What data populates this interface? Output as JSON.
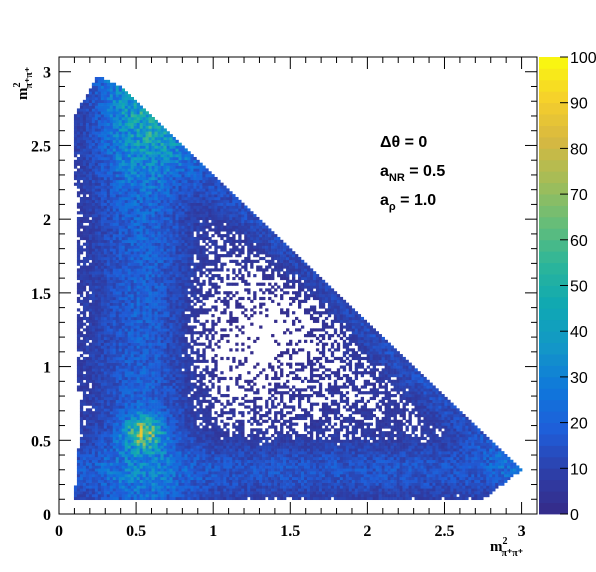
{
  "chart_data": {
    "type": "heatmap",
    "title": "",
    "xlabel": "m²π⁺π⁺",
    "ylabel": "m²π⁺π⁺",
    "xlim": [
      0,
      3.1
    ],
    "ylim": [
      0,
      3.1
    ],
    "x_ticks": [
      "0",
      "0.5",
      "1",
      "1.5",
      "2",
      "2.5",
      "3"
    ],
    "y_ticks": [
      "0",
      "0.5",
      "1",
      "1.5",
      "2",
      "2.5",
      "3"
    ],
    "colorbar": {
      "min": 0,
      "max": 100,
      "ticks": [
        "0",
        "10",
        "20",
        "30",
        "40",
        "50",
        "60",
        "70",
        "80",
        "90",
        "100"
      ],
      "colors": [
        "#352a87",
        "#2d3fa8",
        "#1f5dd9",
        "#0f77db",
        "#1396c8",
        "#0fa8b3",
        "#2bb59a",
        "#66bd78",
        "#a3bd58",
        "#d7b840",
        "#f6d02b",
        "#f9fb0e"
      ]
    },
    "annotations": [
      {
        "text": "Δθ = 0"
      },
      {
        "main": "a",
        "sub": "NR",
        "rest": " = 0.5"
      },
      {
        "main": "a",
        "sub": "ρ",
        "rest": " = 1.0"
      }
    ],
    "region": {
      "description_vertices_data_units": [
        [
          0.1,
          0.1
        ],
        [
          0.13,
          0.5
        ],
        [
          0.1,
          2.7
        ],
        [
          0.25,
          2.97
        ],
        [
          0.4,
          2.9
        ],
        [
          3.0,
          0.3
        ],
        [
          2.75,
          0.1
        ]
      ]
    },
    "features": {
      "hotspot": {
        "x": 0.55,
        "y": 0.55,
        "peak": 65
      },
      "upper_band": {
        "x": 0.55,
        "y": 2.6,
        "level": 40
      },
      "lower_band": {
        "y": 0.3,
        "level": 20
      },
      "depleted_center": {
        "x": 1.3,
        "y": 1.2
      }
    }
  }
}
